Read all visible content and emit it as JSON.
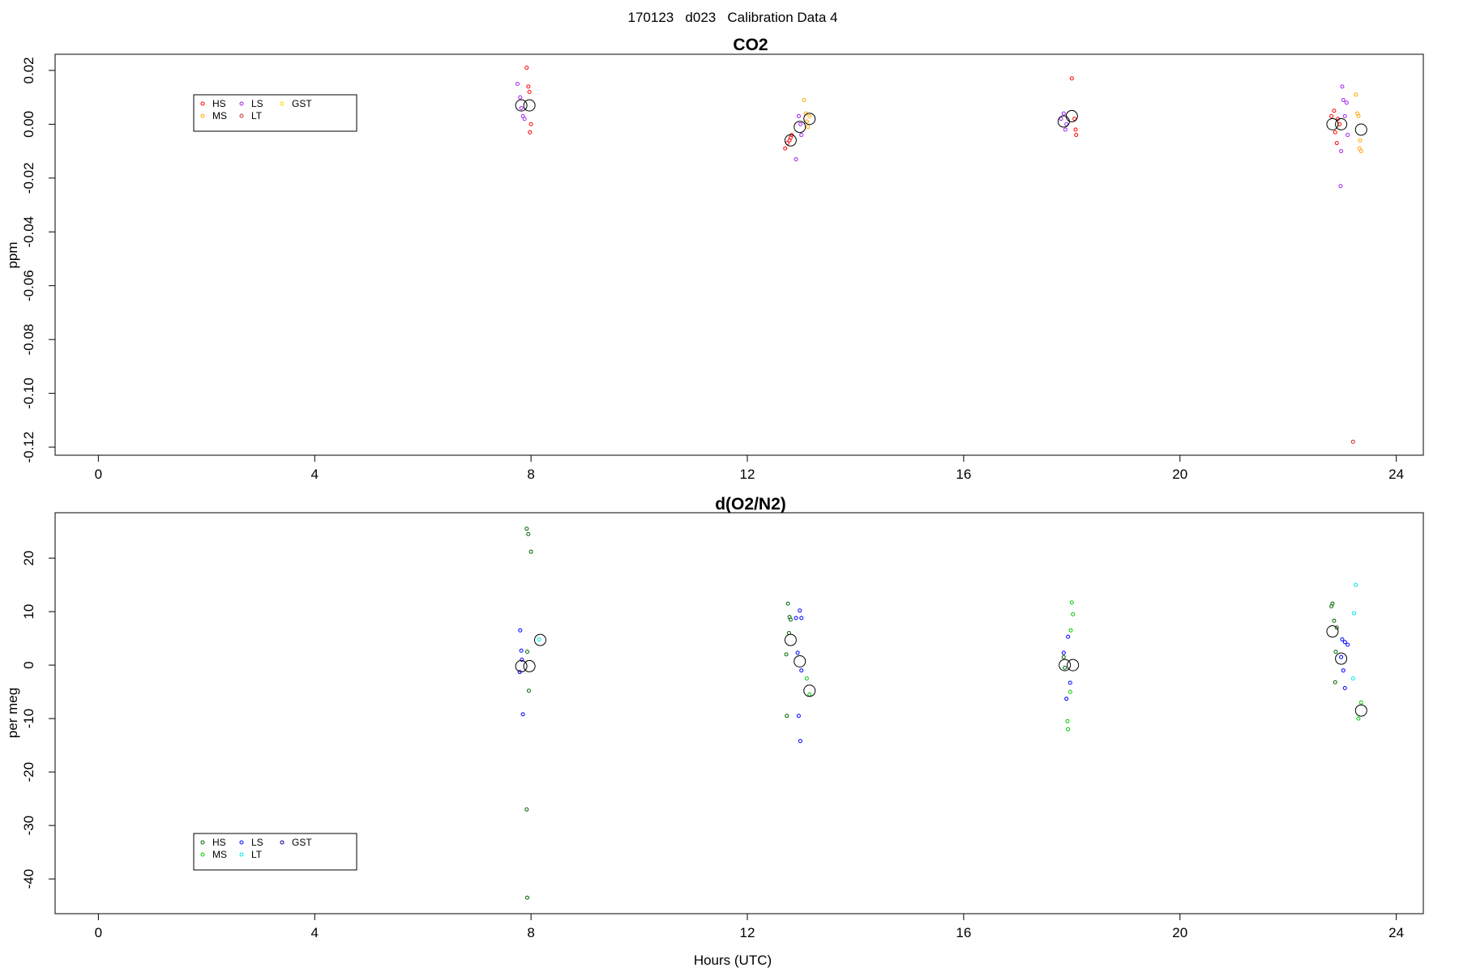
{
  "figure": {
    "title": "170123   d023   Calibration Data 4"
  },
  "chart_data": [
    {
      "type": "scatter",
      "title": "CO2",
      "xlabel": "",
      "ylabel": "ppm",
      "xlim": [
        -0.8,
        24.5
      ],
      "ylim": [
        -0.123,
        0.026
      ],
      "x_ticks": [
        0,
        4,
        8,
        12,
        16,
        20,
        24
      ],
      "y_ticks": [
        0.02,
        0.0,
        -0.02,
        -0.04,
        -0.06,
        -0.08,
        -0.1,
        -0.12
      ],
      "y_tick_labels": [
        "0.02",
        "0.00",
        "-0.02",
        "-0.04",
        "-0.06",
        "-0.08",
        "-0.10",
        "-0.12"
      ],
      "legend_position": "top-left",
      "legend": [
        {
          "name": "HS",
          "color": "#ff0000"
        },
        {
          "name": "MS",
          "color": "#ffa500"
        },
        {
          "name": "LS",
          "color": "#a020f0"
        },
        {
          "name": "LT",
          "color": "#cd2626"
        },
        {
          "name": "GST",
          "color": "#ffd700"
        }
      ],
      "series": [
        {
          "name": "HS",
          "color": "#ff0000",
          "points": [
            [
              7.92,
              0.021
            ],
            [
              7.95,
              0.014
            ],
            [
              7.97,
              0.012
            ],
            [
              8.0,
              0.0
            ],
            [
              7.98,
              -0.003
            ],
            [
              12.7,
              -0.009
            ],
            [
              12.74,
              -0.007
            ],
            [
              12.78,
              -0.006
            ],
            [
              12.8,
              -0.005
            ],
            [
              12.82,
              -0.004
            ],
            [
              18.0,
              0.017
            ],
            [
              18.05,
              0.002
            ],
            [
              18.07,
              -0.002
            ],
            [
              18.08,
              -0.004
            ],
            [
              22.8,
              0.003
            ],
            [
              22.85,
              0.005
            ],
            [
              22.87,
              -0.003
            ],
            [
              22.9,
              -0.007
            ],
            [
              22.92,
              0.002
            ],
            [
              22.95,
              0.0
            ]
          ]
        },
        {
          "name": "MS",
          "color": "#ffa500",
          "points": [
            [
              13.05,
              0.009
            ],
            [
              13.08,
              0.004
            ],
            [
              13.1,
              0.001
            ],
            [
              13.12,
              -0.001
            ],
            [
              13.15,
              0.003
            ],
            [
              23.25,
              0.011
            ],
            [
              23.28,
              0.004
            ],
            [
              23.3,
              0.003
            ],
            [
              23.33,
              -0.006
            ],
            [
              23.32,
              -0.009
            ],
            [
              23.35,
              -0.01
            ]
          ]
        },
        {
          "name": "LS",
          "color": "#a020f0",
          "points": [
            [
              7.75,
              0.015
            ],
            [
              7.8,
              0.01
            ],
            [
              7.82,
              0.006
            ],
            [
              7.85,
              0.003
            ],
            [
              7.88,
              0.002
            ],
            [
              12.9,
              -0.013
            ],
            [
              12.95,
              0.003
            ],
            [
              12.98,
              0.0
            ],
            [
              13.0,
              -0.004
            ],
            [
              17.8,
              0.002
            ],
            [
              17.85,
              0.004
            ],
            [
              17.88,
              -0.002
            ],
            [
              17.9,
              0.0
            ],
            [
              23.0,
              0.014
            ],
            [
              23.02,
              0.009
            ],
            [
              23.05,
              0.003
            ],
            [
              23.08,
              0.008
            ],
            [
              23.1,
              -0.004
            ],
            [
              22.98,
              -0.01
            ],
            [
              22.97,
              -0.023
            ]
          ]
        },
        {
          "name": "LT",
          "color": "#cd2626",
          "points": [
            [
              23.2,
              -0.118
            ]
          ]
        },
        {
          "name": "GST",
          "color": "#ffd700",
          "points": []
        }
      ],
      "means": [
        [
          7.82,
          0.007
        ],
        [
          7.97,
          0.007
        ],
        [
          12.8,
          -0.006
        ],
        [
          12.97,
          -0.001
        ],
        [
          13.15,
          0.002
        ],
        [
          17.85,
          0.001
        ],
        [
          18.0,
          0.003
        ],
        [
          22.82,
          0.0
        ],
        [
          22.98,
          0.0
        ],
        [
          23.35,
          -0.002
        ]
      ]
    },
    {
      "type": "scatter",
      "title": "d(O2/N2)",
      "xlabel": "Hours (UTC)",
      "ylabel": "per meg",
      "xlim": [
        -0.8,
        24.5
      ],
      "ylim": [
        -46.5,
        28.5
      ],
      "x_ticks": [
        0,
        4,
        8,
        12,
        16,
        20,
        24
      ],
      "y_ticks": [
        20,
        10,
        0,
        -10,
        -20,
        -30,
        -40
      ],
      "y_tick_labels": [
        "20",
        "10",
        "0",
        "-10",
        "-20",
        "-30",
        "-40"
      ],
      "legend_position": "bottom-left",
      "legend": [
        {
          "name": "HS",
          "color": "#006400"
        },
        {
          "name": "MS",
          "color": "#00cc00"
        },
        {
          "name": "LS",
          "color": "#0000ff"
        },
        {
          "name": "LT",
          "color": "#00e5ee"
        },
        {
          "name": "GST",
          "color": "#00008b"
        }
      ],
      "series": [
        {
          "name": "HS",
          "color": "#006400",
          "points": [
            [
              7.92,
              25.5
            ],
            [
              7.95,
              24.5
            ],
            [
              8.0,
              21.2
            ],
            [
              7.93,
              2.5
            ],
            [
              7.96,
              -4.8
            ],
            [
              7.92,
              -27.0
            ],
            [
              7.93,
              -43.5
            ],
            [
              12.75,
              11.5
            ],
            [
              12.78,
              9.0
            ],
            [
              12.8,
              8.5
            ],
            [
              12.77,
              6.0
            ],
            [
              12.72,
              2.0
            ],
            [
              12.73,
              -9.5
            ],
            [
              17.85,
              1.5
            ],
            [
              17.87,
              -0.5
            ],
            [
              22.8,
              11.0
            ],
            [
              22.82,
              11.5
            ],
            [
              22.85,
              8.3
            ],
            [
              22.9,
              7.0
            ],
            [
              22.88,
              2.5
            ],
            [
              22.87,
              -3.2
            ]
          ]
        },
        {
          "name": "MS",
          "color": "#00cc00",
          "points": [
            [
              13.1,
              -2.5
            ],
            [
              13.15,
              -5.5
            ],
            [
              18.0,
              11.7
            ],
            [
              18.02,
              9.5
            ],
            [
              17.98,
              6.5
            ],
            [
              17.97,
              -5.0
            ],
            [
              17.92,
              -10.5
            ],
            [
              17.93,
              -12.0
            ],
            [
              23.35,
              -7.0
            ],
            [
              23.3,
              -10.0
            ]
          ]
        },
        {
          "name": "LS",
          "color": "#0000ff",
          "points": [
            [
              7.8,
              6.5
            ],
            [
              7.82,
              2.7
            ],
            [
              7.83,
              1.0
            ],
            [
              7.79,
              -1.3
            ],
            [
              7.85,
              -9.2
            ],
            [
              12.9,
              8.8
            ],
            [
              12.97,
              10.2
            ],
            [
              13.0,
              8.8
            ],
            [
              12.93,
              2.3
            ],
            [
              13.0,
              -1.0
            ],
            [
              12.95,
              -9.5
            ],
            [
              12.98,
              -14.2
            ],
            [
              17.85,
              2.3
            ],
            [
              17.93,
              5.3
            ],
            [
              17.97,
              -3.3
            ],
            [
              17.9,
              -6.3
            ],
            [
              23.0,
              4.8
            ],
            [
              23.05,
              4.3
            ],
            [
              23.1,
              3.8
            ],
            [
              22.98,
              1.5
            ],
            [
              23.02,
              -1.0
            ],
            [
              23.05,
              -4.3
            ]
          ]
        },
        {
          "name": "LT",
          "color": "#00e5ee",
          "points": [
            [
              8.15,
              4.8
            ],
            [
              23.25,
              15.0
            ],
            [
              23.22,
              9.7
            ],
            [
              23.2,
              -2.5
            ]
          ]
        },
        {
          "name": "GST",
          "color": "#00008b",
          "points": []
        }
      ],
      "means": [
        [
          7.82,
          -0.2
        ],
        [
          7.97,
          -0.2
        ],
        [
          8.17,
          4.7
        ],
        [
          12.8,
          4.7
        ],
        [
          12.97,
          0.7
        ],
        [
          13.15,
          -4.8
        ],
        [
          17.87,
          0.0
        ],
        [
          18.02,
          0.0
        ],
        [
          22.82,
          6.3
        ],
        [
          22.98,
          1.2
        ],
        [
          23.35,
          -8.5
        ]
      ]
    }
  ]
}
